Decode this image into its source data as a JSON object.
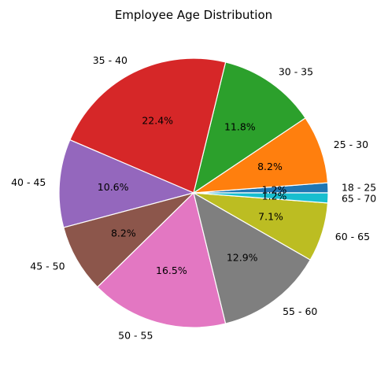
{
  "chart_data": {
    "type": "pie",
    "title": "Employee Age Distribution",
    "slices": [
      {
        "label": "18 - 25",
        "value": 1.2,
        "pct_label": "1.2%",
        "color": "#1f77b4"
      },
      {
        "label": "25 - 30",
        "value": 8.2,
        "pct_label": "8.2%",
        "color": "#ff7f0e"
      },
      {
        "label": "30 - 35",
        "value": 11.8,
        "pct_label": "11.8%",
        "color": "#2ca02c"
      },
      {
        "label": "35 - 40",
        "value": 22.4,
        "pct_label": "22.4%",
        "color": "#d62728"
      },
      {
        "label": "40 - 45",
        "value": 10.6,
        "pct_label": "10.6%",
        "color": "#9467bd"
      },
      {
        "label": "45 - 50",
        "value": 8.2,
        "pct_label": "8.2%",
        "color": "#8c564b"
      },
      {
        "label": "50 - 55",
        "value": 16.5,
        "pct_label": "16.5%",
        "color": "#e377c2"
      },
      {
        "label": "55 - 60",
        "value": 12.9,
        "pct_label": "12.9%",
        "color": "#7f7f7f"
      },
      {
        "label": "60 - 65",
        "value": 7.1,
        "pct_label": "7.1%",
        "color": "#bcbd22"
      },
      {
        "label": "65 - 70",
        "value": 1.2,
        "pct_label": "1.2%",
        "color": "#17becf"
      }
    ],
    "start_angle_deg": 0,
    "direction": "counterclockwise",
    "legend": "none"
  }
}
